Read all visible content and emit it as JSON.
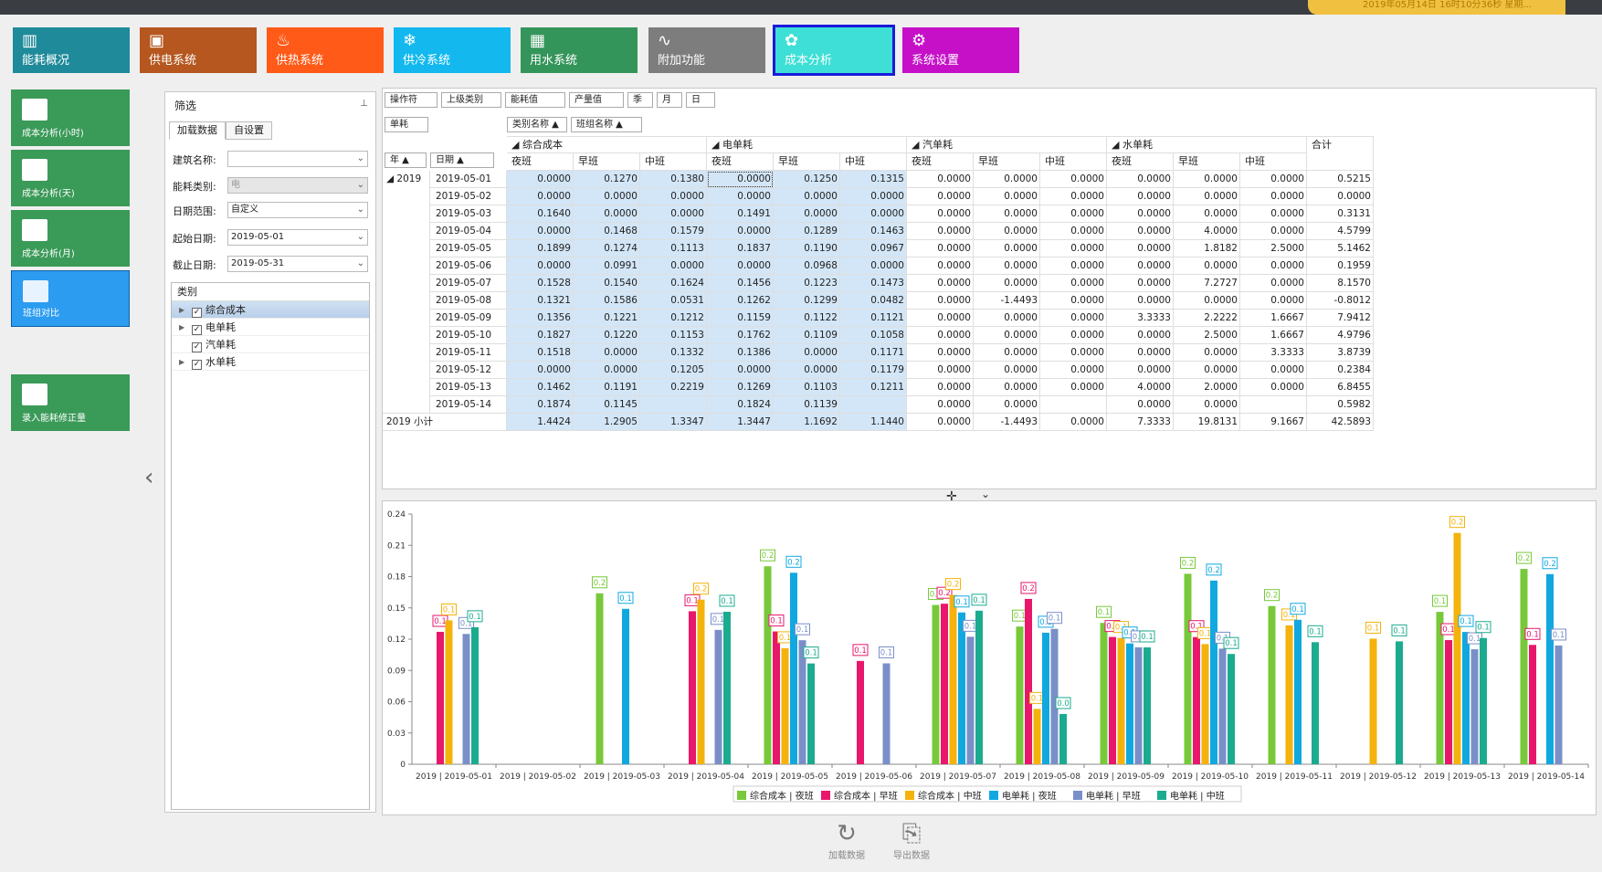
{
  "header": {
    "datetime": "2019年05月14日 16时10分36秒 星期..."
  },
  "top_nav": [
    {
      "label": "能耗概况",
      "color": "#1f8a9a",
      "icon": "chart-icon"
    },
    {
      "label": "供电系统",
      "color": "#b5571f",
      "icon": "monitor-icon"
    },
    {
      "label": "供热系统",
      "color": "#ff5a17",
      "icon": "flame-icon"
    },
    {
      "label": "供冷系统",
      "color": "#12b8ee",
      "icon": "snowflake-icon"
    },
    {
      "label": "用水系统",
      "color": "#34955a",
      "icon": "grid-icon"
    },
    {
      "label": "附加功能",
      "color": "#7d7d7d",
      "icon": "pulse-icon"
    },
    {
      "label": "成本分析",
      "color": "#3ddfd6",
      "icon": "leaf-icon",
      "active": true
    },
    {
      "label": "系统设置",
      "color": "#c510c8",
      "icon": "gear-icon"
    }
  ],
  "side_nav": [
    {
      "label": "成本分析(小时)",
      "icon": "book-icon"
    },
    {
      "label": "成本分析(天)",
      "icon": "book-icon"
    },
    {
      "label": "成本分析(月)",
      "icon": "book-icon"
    },
    {
      "label": "班组对比",
      "icon": "trend-icon",
      "active": true
    },
    {
      "label": "录入能耗修正量",
      "icon": "pencil-icon"
    }
  ],
  "filter": {
    "title": "筛选",
    "tabs": [
      "加载数据",
      "自设置"
    ],
    "building_label": "建筑名称:",
    "building_value": "",
    "energy_label": "能耗类别:",
    "energy_value": "电",
    "range_label": "日期范围:",
    "range_value": "自定义",
    "start_label": "起始日期:",
    "start_value": "2019-05-01",
    "end_label": "截止日期:",
    "end_value": "2019-05-31",
    "category_title": "类别",
    "categories": [
      {
        "label": "综合成本",
        "expandable": true,
        "selected": true
      },
      {
        "label": "电单耗",
        "expandable": true,
        "selected": false
      },
      {
        "label": "汽单耗",
        "expandable": false,
        "selected": false
      },
      {
        "label": "水单耗",
        "expandable": true,
        "selected": false
      }
    ]
  },
  "pivot": {
    "filter_fields": [
      "操作符",
      "上级类别",
      "能耗值",
      "产量值",
      "季",
      "月",
      "日"
    ],
    "data_field": "单耗",
    "column_fields": [
      "类别名称 ▲",
      "班组名称 ▲"
    ],
    "row_fields": [
      "年 ▲",
      "日期 ▲"
    ],
    "groups": [
      "综合成本",
      "电单耗",
      "汽单耗",
      "水单耗"
    ],
    "shifts": [
      "夜班",
      "早班",
      "中班"
    ],
    "total_label": "合计",
    "year": "2019",
    "rows": [
      {
        "date": "2019-05-01",
        "v": [
          "0.0000",
          "0.1270",
          "0.1380",
          "0.0000",
          "0.1250",
          "0.1315",
          "0.0000",
          "0.0000",
          "0.0000",
          "0.0000",
          "0.0000",
          "0.0000",
          "0.5215"
        ]
      },
      {
        "date": "2019-05-02",
        "v": [
          "0.0000",
          "0.0000",
          "0.0000",
          "0.0000",
          "0.0000",
          "0.0000",
          "0.0000",
          "0.0000",
          "0.0000",
          "0.0000",
          "0.0000",
          "0.0000",
          "0.0000"
        ]
      },
      {
        "date": "2019-05-03",
        "v": [
          "0.1640",
          "0.0000",
          "0.0000",
          "0.1491",
          "0.0000",
          "0.0000",
          "0.0000",
          "0.0000",
          "0.0000",
          "0.0000",
          "0.0000",
          "0.0000",
          "0.3131"
        ]
      },
      {
        "date": "2019-05-04",
        "v": [
          "0.0000",
          "0.1468",
          "0.1579",
          "0.0000",
          "0.1289",
          "0.1463",
          "0.0000",
          "0.0000",
          "0.0000",
          "0.0000",
          "4.0000",
          "0.0000",
          "4.5799"
        ]
      },
      {
        "date": "2019-05-05",
        "v": [
          "0.1899",
          "0.1274",
          "0.1113",
          "0.1837",
          "0.1190",
          "0.0967",
          "0.0000",
          "0.0000",
          "0.0000",
          "0.0000",
          "1.8182",
          "2.5000",
          "5.1462"
        ]
      },
      {
        "date": "2019-05-06",
        "v": [
          "0.0000",
          "0.0991",
          "0.0000",
          "0.0000",
          "0.0968",
          "0.0000",
          "0.0000",
          "0.0000",
          "0.0000",
          "0.0000",
          "0.0000",
          "0.0000",
          "0.1959"
        ]
      },
      {
        "date": "2019-05-07",
        "v": [
          "0.1528",
          "0.1540",
          "0.1624",
          "0.1456",
          "0.1223",
          "0.1473",
          "0.0000",
          "0.0000",
          "0.0000",
          "0.0000",
          "7.2727",
          "0.0000",
          "8.1570"
        ]
      },
      {
        "date": "2019-05-08",
        "v": [
          "0.1321",
          "0.1586",
          "0.0531",
          "0.1262",
          "0.1299",
          "0.0482",
          "0.0000",
          "-1.4493",
          "0.0000",
          "0.0000",
          "0.0000",
          "0.0000",
          "-0.8012"
        ]
      },
      {
        "date": "2019-05-09",
        "v": [
          "0.1356",
          "0.1221",
          "0.1212",
          "0.1159",
          "0.1122",
          "0.1121",
          "0.0000",
          "0.0000",
          "0.0000",
          "3.3333",
          "2.2222",
          "1.6667",
          "7.9412"
        ]
      },
      {
        "date": "2019-05-10",
        "v": [
          "0.1827",
          "0.1220",
          "0.1153",
          "0.1762",
          "0.1109",
          "0.1058",
          "0.0000",
          "0.0000",
          "0.0000",
          "0.0000",
          "2.5000",
          "1.6667",
          "4.9796"
        ]
      },
      {
        "date": "2019-05-11",
        "v": [
          "0.1518",
          "0.0000",
          "0.1332",
          "0.1386",
          "0.0000",
          "0.1171",
          "0.0000",
          "0.0000",
          "0.0000",
          "0.0000",
          "0.0000",
          "3.3333",
          "3.8739"
        ]
      },
      {
        "date": "2019-05-12",
        "v": [
          "0.0000",
          "0.0000",
          "0.1205",
          "0.0000",
          "0.0000",
          "0.1179",
          "0.0000",
          "0.0000",
          "0.0000",
          "0.0000",
          "0.0000",
          "0.0000",
          "0.2384"
        ]
      },
      {
        "date": "2019-05-13",
        "v": [
          "0.1462",
          "0.1191",
          "0.2219",
          "0.1269",
          "0.1103",
          "0.1211",
          "0.0000",
          "0.0000",
          "0.0000",
          "4.0000",
          "2.0000",
          "0.0000",
          "6.8455"
        ]
      },
      {
        "date": "2019-05-14",
        "v": [
          "0.1874",
          "0.1145",
          "",
          "0.1824",
          "0.1139",
          "",
          "0.0000",
          "0.0000",
          "",
          "0.0000",
          "0.0000",
          "",
          "0.5982"
        ]
      }
    ],
    "subtotal_label": "2019 小计",
    "subtotal": [
      "1.4424",
      "1.2905",
      "1.3347",
      "1.3447",
      "1.1692",
      "1.1440",
      "0.0000",
      "-1.4493",
      "0.0000",
      "7.3333",
      "19.8131",
      "9.1667",
      "42.5893"
    ]
  },
  "chart_data": {
    "type": "bar",
    "categories": [
      "2019 | 2019-05-01",
      "2019 | 2019-05-02",
      "2019 | 2019-05-03",
      "2019 | 2019-05-04",
      "2019 | 2019-05-05",
      "2019 | 2019-05-06",
      "2019 | 2019-05-07",
      "2019 | 2019-05-08",
      "2019 | 2019-05-09",
      "2019 | 2019-05-10",
      "2019 | 2019-05-11",
      "2019 | 2019-05-12",
      "2019 | 2019-05-13",
      "2019 | 2019-05-14"
    ],
    "ylim": [
      0,
      0.24
    ],
    "yticks": [
      "0",
      "0.03",
      "0.06",
      "0.09",
      "0.12",
      "0.15",
      "0.18",
      "0.21",
      "0.24"
    ],
    "grid": false,
    "legend_position": "bottom",
    "series": [
      {
        "name": "综合成本 | 夜班",
        "color": "#77c93a",
        "values": [
          0,
          0,
          0.164,
          0,
          0.1899,
          0,
          0.1528,
          0.1321,
          0.1356,
          0.1827,
          0.1518,
          0,
          0.1462,
          0.1874
        ]
      },
      {
        "name": "综合成本 | 早班",
        "color": "#e8176b",
        "values": [
          0.127,
          0,
          0,
          0.1468,
          0.1274,
          0.0991,
          0.154,
          0.1586,
          0.1221,
          0.122,
          0,
          0,
          0.1191,
          0.1145
        ]
      },
      {
        "name": "综合成本 | 中班",
        "color": "#f4b30c",
        "values": [
          0.138,
          0,
          0,
          0.1579,
          0.1113,
          0,
          0.1624,
          0.0531,
          0.1212,
          0.1153,
          0.1332,
          0.1205,
          0.2219,
          0
        ]
      },
      {
        "name": "电单耗 | 夜班",
        "color": "#11a8e0",
        "values": [
          0,
          0,
          0.1491,
          0,
          0.1837,
          0,
          0.1456,
          0.1262,
          0.1159,
          0.1762,
          0.1386,
          0,
          0.1269,
          0.1824
        ]
      },
      {
        "name": "电单耗 | 早班",
        "color": "#7a8fc9",
        "values": [
          0.125,
          0,
          0,
          0.1289,
          0.119,
          0.0968,
          0.1223,
          0.1299,
          0.1122,
          0.1109,
          0,
          0,
          0.1103,
          0.1139
        ]
      },
      {
        "name": "电单耗 | 中班",
        "color": "#1bab8f",
        "values": [
          0.1315,
          0,
          0,
          0.1463,
          0.0967,
          0,
          0.1473,
          0.0482,
          0.1121,
          0.1058,
          0.1171,
          0.1179,
          0.1211,
          0
        ]
      }
    ]
  },
  "bottom_buttons": [
    {
      "label": "加载数据",
      "icon": "refresh-icon"
    },
    {
      "label": "导出数据",
      "icon": "export-icon"
    }
  ]
}
